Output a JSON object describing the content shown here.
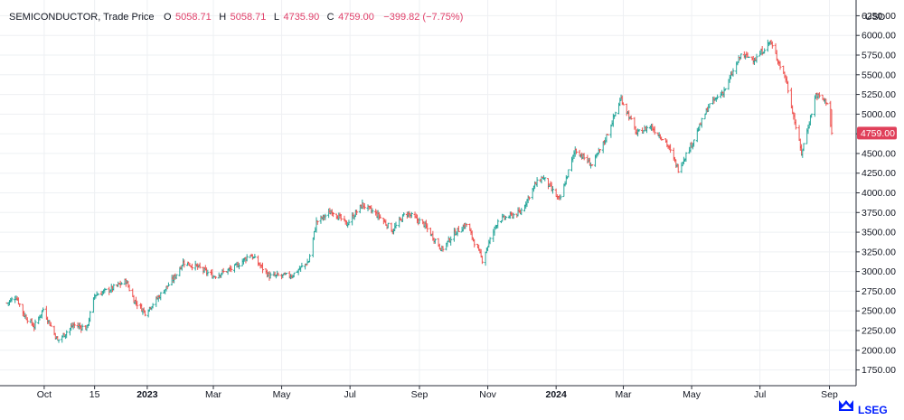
{
  "header": {
    "instrument": "SEMICONDUCTOR, Trade Price",
    "open_label": "O",
    "open_value": "5058.71",
    "high_label": "H",
    "high_value": "5058.71",
    "low_label": "L",
    "low_value": "4735.90",
    "close_label": "C",
    "close_value": "4759.00",
    "change_value": "−399.82 (−7.75%)"
  },
  "currency": "USD",
  "brand": "LSEG",
  "last_price_label": "4759.00",
  "colors": {
    "up": "#26a69a",
    "down": "#ef5350",
    "last": "#e0405a",
    "brand": "#001eff",
    "text": "#131722"
  },
  "chart_data": {
    "type": "ohlc",
    "ylim": [
      1550,
      6450
    ],
    "yticks": [
      "1750.00",
      "2000.00",
      "2250.00",
      "2500.00",
      "2750.00",
      "3000.00",
      "3250.00",
      "3500.00",
      "3750.00",
      "4000.00",
      "4250.00",
      "4500.00",
      "4750.00",
      "5000.00",
      "5250.00",
      "5500.00",
      "5750.00",
      "6000.00",
      "6250.00"
    ],
    "xticks": [
      {
        "label": "Oct",
        "date": "2022-10-01",
        "bold": false
      },
      {
        "label": "15",
        "date": "2022-11-15",
        "bold": false
      },
      {
        "label": "2023",
        "date": "2023-01-01",
        "bold": true
      },
      {
        "label": "Mar",
        "date": "2023-03-01",
        "bold": false
      },
      {
        "label": "May",
        "date": "2023-05-01",
        "bold": false
      },
      {
        "label": "Jul",
        "date": "2023-07-01",
        "bold": false
      },
      {
        "label": "Sep",
        "date": "2023-09-01",
        "bold": false
      },
      {
        "label": "Nov",
        "date": "2023-11-01",
        "bold": false
      },
      {
        "label": "2024",
        "date": "2024-01-01",
        "bold": true
      },
      {
        "label": "Mar",
        "date": "2024-03-01",
        "bold": false
      },
      {
        "label": "May",
        "date": "2024-05-01",
        "bold": false
      },
      {
        "label": "Jul",
        "date": "2024-07-01",
        "bold": false
      },
      {
        "label": "Sep",
        "date": "2024-09-01",
        "bold": false
      }
    ],
    "start_date": "2022-08-29",
    "end_date": "2024-09-03",
    "anchors": [
      [
        "2022-08-29",
        2600
      ],
      [
        "2022-09-06",
        2680
      ],
      [
        "2022-09-13",
        2450
      ],
      [
        "2022-09-22",
        2300
      ],
      [
        "2022-09-30",
        2520
      ],
      [
        "2022-10-13",
        2120
      ],
      [
        "2022-10-27",
        2320
      ],
      [
        "2022-11-08",
        2280
      ],
      [
        "2022-11-15",
        2700
      ],
      [
        "2022-11-30",
        2780
      ],
      [
        "2022-12-13",
        2880
      ],
      [
        "2022-12-20",
        2640
      ],
      [
        "2022-12-30",
        2480
      ],
      [
        "2023-01-09",
        2640
      ],
      [
        "2023-01-25",
        2920
      ],
      [
        "2023-02-02",
        3120
      ],
      [
        "2023-02-16",
        3050
      ],
      [
        "2023-03-01",
        2940
      ],
      [
        "2023-03-20",
        3050
      ],
      [
        "2023-04-03",
        3220
      ],
      [
        "2023-04-20",
        2940
      ],
      [
        "2023-05-10",
        2950
      ],
      [
        "2023-05-25",
        3130
      ],
      [
        "2023-06-01",
        3630
      ],
      [
        "2023-06-15",
        3770
      ],
      [
        "2023-06-28",
        3600
      ],
      [
        "2023-07-12",
        3850
      ],
      [
        "2023-07-27",
        3700
      ],
      [
        "2023-08-08",
        3520
      ],
      [
        "2023-08-20",
        3750
      ],
      [
        "2023-09-05",
        3600
      ],
      [
        "2023-09-21",
        3280
      ],
      [
        "2023-10-03",
        3500
      ],
      [
        "2023-10-13",
        3600
      ],
      [
        "2023-10-27",
        3150
      ],
      [
        "2023-11-10",
        3650
      ],
      [
        "2023-11-30",
        3750
      ],
      [
        "2023-12-13",
        4100
      ],
      [
        "2023-12-20",
        4200
      ],
      [
        "2024-01-04",
        3900
      ],
      [
        "2024-01-18",
        4550
      ],
      [
        "2024-02-02",
        4350
      ],
      [
        "2024-02-13",
        4650
      ],
      [
        "2024-02-28",
        5200
      ],
      [
        "2024-03-13",
        4750
      ],
      [
        "2024-03-25",
        4850
      ],
      [
        "2024-04-08",
        4650
      ],
      [
        "2024-04-19",
        4300
      ],
      [
        "2024-05-02",
        4650
      ],
      [
        "2024-05-16",
        5100
      ],
      [
        "2024-05-30",
        5300
      ],
      [
        "2024-06-14",
        5750
      ],
      [
        "2024-06-27",
        5700
      ],
      [
        "2024-07-10",
        5920
      ],
      [
        "2024-07-24",
        5450
      ],
      [
        "2024-08-07",
        4500
      ],
      [
        "2024-08-20",
        5250
      ],
      [
        "2024-08-30",
        5150
      ],
      [
        "2024-09-03",
        4759
      ]
    ]
  }
}
